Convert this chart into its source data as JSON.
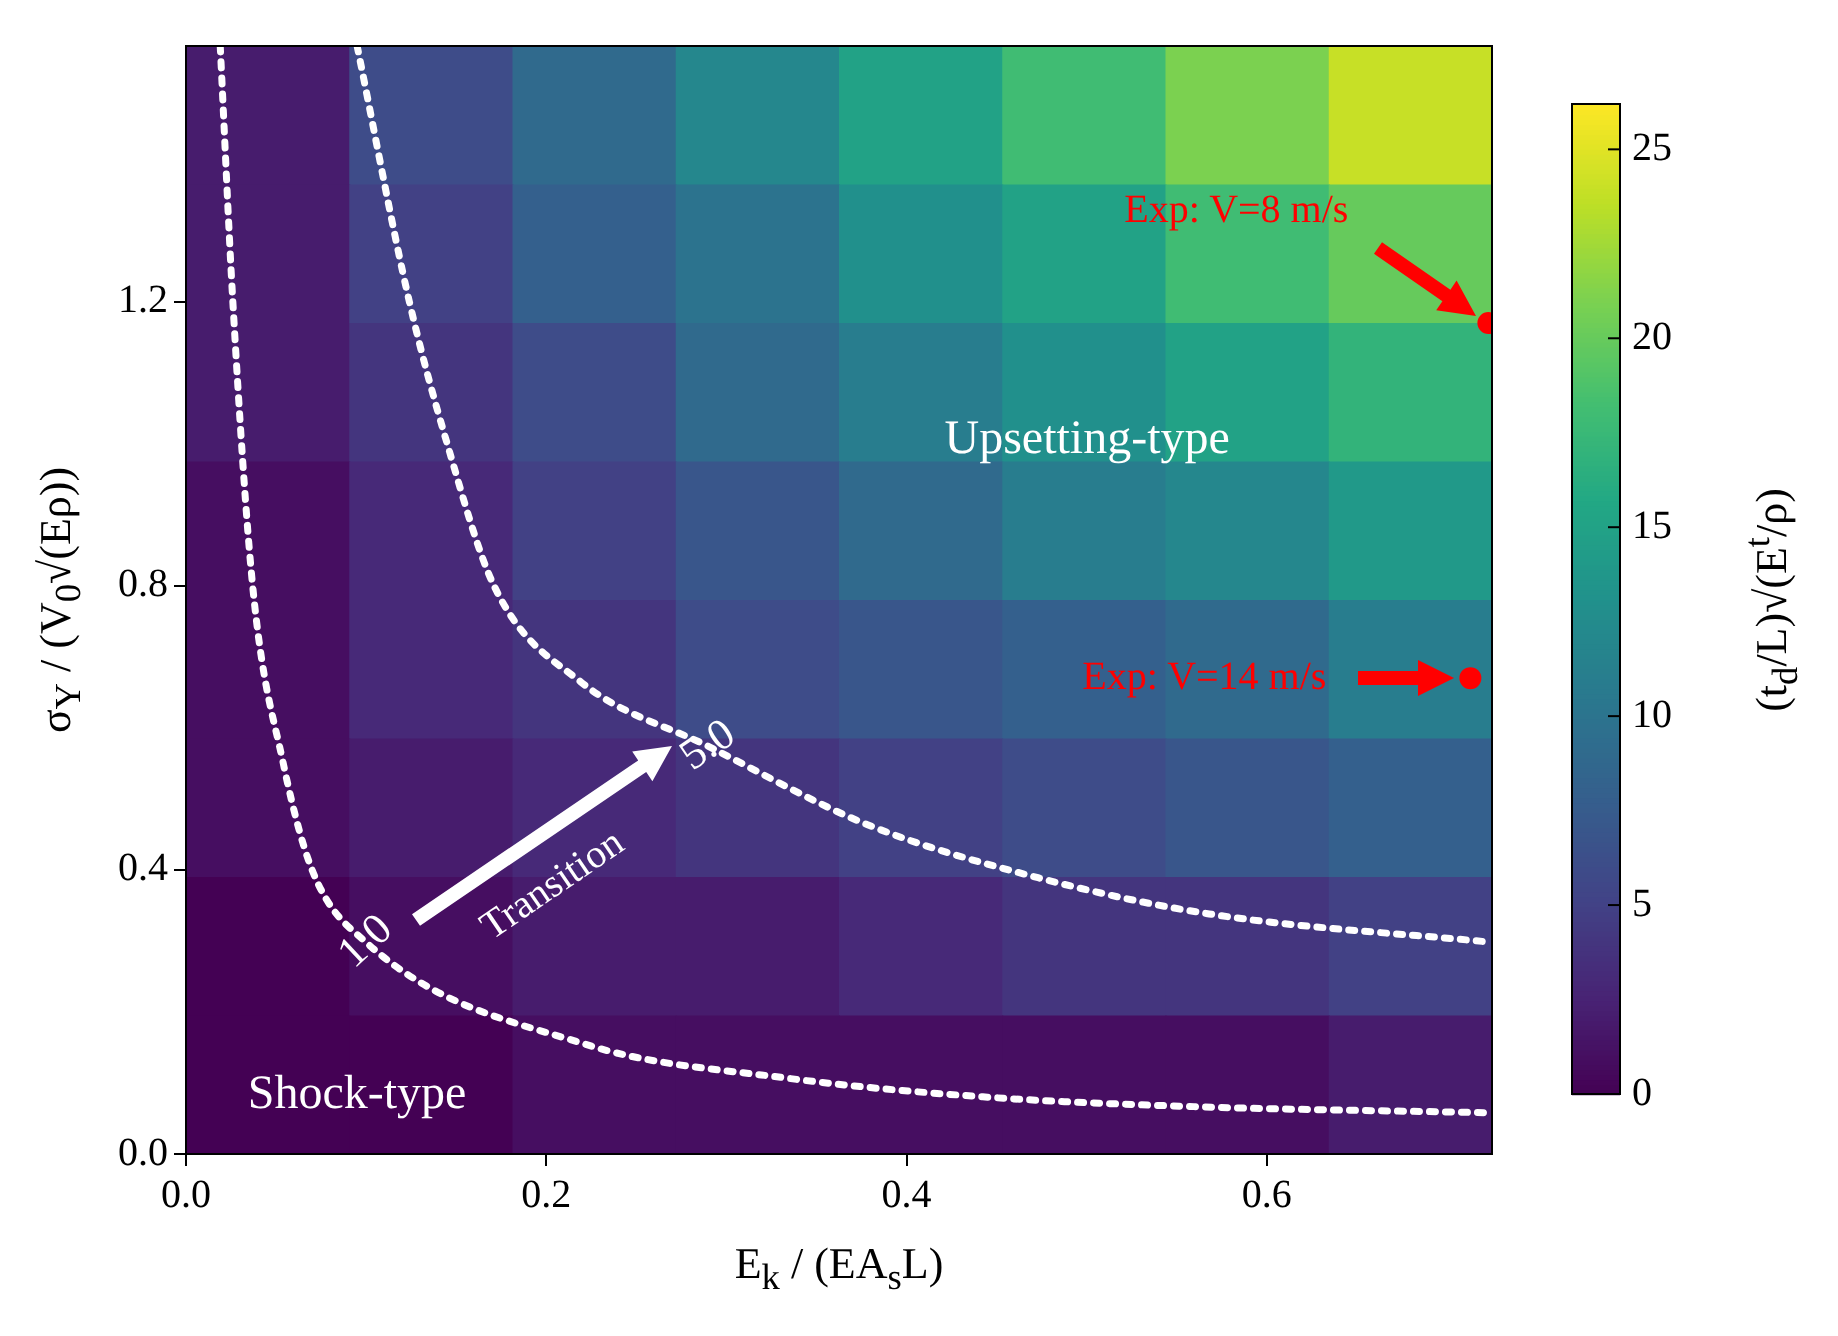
{
  "chart_data": {
    "type": "heatmap",
    "xlabel": "E$_{k}$ / (EA$_{s}$L)",
    "ylabel": "σ$_{Y}$ / (V$_{0}$√(Eρ))",
    "clabel": "(t$_{d}$/L)√(E$^{t}$/ρ)",
    "cells": [
      [
        2,
        6,
        9,
        12,
        15,
        18,
        21,
        24
      ],
      [
        2,
        5,
        8,
        10,
        13,
        15,
        18,
        20
      ],
      [
        2,
        4,
        6,
        9,
        11,
        13,
        15,
        17
      ],
      [
        1,
        3,
        5,
        7,
        9,
        11,
        12,
        14
      ],
      [
        1,
        3,
        4,
        6,
        7,
        8,
        9,
        11
      ],
      [
        1,
        2,
        3,
        4,
        5,
        6,
        7,
        8
      ],
      [
        0,
        1,
        2,
        2,
        3,
        4,
        4,
        5
      ],
      [
        0,
        0,
        1,
        1,
        1,
        1,
        1,
        2
      ]
    ],
    "clim": [
      0,
      26.2
    ],
    "cticks": [
      0,
      5,
      10,
      15,
      20,
      25
    ],
    "xlim": [
      0,
      0.725
    ],
    "xticks": [
      {
        "value": 0,
        "label": "0.0"
      },
      {
        "value": 0.2,
        "label": "0.2"
      },
      {
        "value": 0.4,
        "label": "0.4"
      },
      {
        "value": 0.6,
        "label": "0.6"
      }
    ],
    "ylim": [
      0,
      1.56
    ],
    "yticks": [
      {
        "value": 0,
        "label": "0.0"
      },
      {
        "value": 0.4,
        "label": "0.4"
      },
      {
        "value": 0.8,
        "label": "0.8"
      },
      {
        "value": 1.2,
        "label": "1.2"
      }
    ],
    "series": [
      {
        "type": "line",
        "color": "#ffffff",
        "line_style": "dotted",
        "x": [
          0.019,
          0.026,
          0.037,
          0.054,
          0.07,
          0.1,
          0.221,
          0.333,
          0.445,
          0.556,
          0.725
        ],
        "values": [
          1.56,
          1.2,
          0.8,
          0.55,
          0.4,
          0.298,
          0.155,
          0.107,
          0.08,
          0.067,
          0.058
        ]
      },
      {
        "type": "line",
        "color": "#ffffff",
        "line_style": "dotted",
        "x": [
          0.095,
          0.124,
          0.145,
          0.171,
          0.219,
          0.29,
          0.378,
          0.473,
          0.568,
          0.725
        ],
        "values": [
          1.56,
          1.2,
          1.0,
          0.8,
          0.665,
          0.574,
          0.464,
          0.389,
          0.338,
          0.298
        ]
      },
      {
        "type": "scatter",
        "color": "#ff0000",
        "marker": "circle",
        "x": [
          0.723,
          0.713
        ],
        "values": [
          1.17,
          0.67
        ]
      }
    ],
    "annotations": [
      "Upsetting-type",
      "Shock-type",
      "Transition",
      "1.0",
      "5.0",
      "Exp: V=8 m/s",
      "Exp: V=14 m/s"
    ]
  }
}
